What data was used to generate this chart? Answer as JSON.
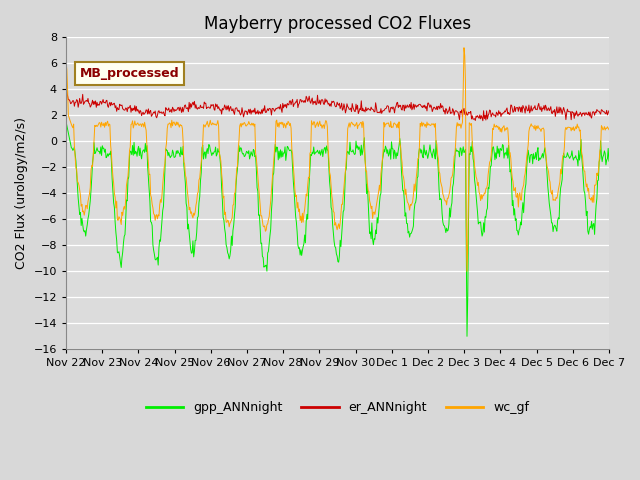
{
  "title": "Mayberry processed CO2 Fluxes",
  "ylabel": "CO2 Flux (urology/m2/s)",
  "ylim": [
    -16,
    8
  ],
  "yticks": [
    -16,
    -14,
    -12,
    -10,
    -8,
    -6,
    -4,
    -2,
    0,
    2,
    4,
    6,
    8
  ],
  "fig_bg": "#e0e0e0",
  "plot_bg": "#dcdcdc",
  "colors": {
    "gpp": "#00ee00",
    "er": "#cc0000",
    "wc": "#ffa500"
  },
  "legend_label": "MB_processed",
  "series_labels": [
    "gpp_ANNnight",
    "er_ANNnight",
    "wc_gf"
  ],
  "tick_labels": [
    "Nov 22",
    "Nov 23",
    "Nov 24",
    "Nov 25",
    "Nov 26",
    "Nov 27",
    "Nov 28",
    "Nov 29",
    "Nov 30",
    "Dec 1",
    "Dec 2",
    "Dec 3",
    "Dec 4",
    "Dec 5",
    "Dec 6",
    "Dec 7"
  ],
  "title_fontsize": 12,
  "axis_fontsize": 9,
  "tick_fontsize": 8
}
